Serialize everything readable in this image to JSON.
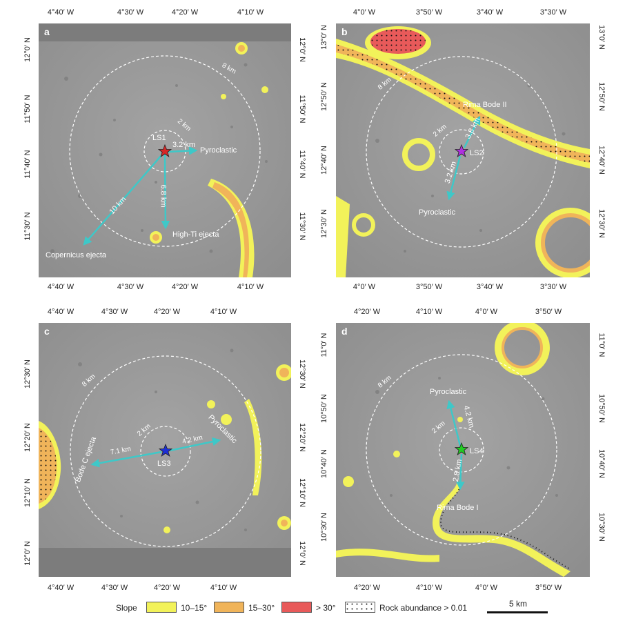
{
  "panels": [
    {
      "label": "a",
      "top_ticks": [
        "4°40′ W",
        "4°30′ W",
        "4°20′ W",
        "4°10′ W"
      ],
      "bottom_ticks": [
        "4°40′ W",
        "4°30′ W",
        "4°20′ W",
        "4°10′ W"
      ],
      "left_ticks": [
        "12°0′ N",
        "11°50′ N",
        "11°40′ N",
        "11°30′ N"
      ],
      "right_ticks": [
        "12°0′ N",
        "11°50′ N",
        "11°40′ N",
        "11°30′ N"
      ],
      "site": {
        "name": "LS1",
        "color": "#d62828"
      },
      "circle_labels": [
        "2 km",
        "8 km"
      ],
      "arrow_labels": [
        "3.2 km",
        "6.8 km",
        "10 km"
      ],
      "feature_labels": [
        "Pyroclastic",
        "High-Ti ejecta",
        "Copernicus ejecta"
      ]
    },
    {
      "label": "b",
      "top_ticks": [
        "4°0′ W",
        "3°50′ W",
        "3°40′ W",
        "3°30′ W"
      ],
      "bottom_ticks": [
        "4°0′ W",
        "3°50′ W",
        "3°40′ W",
        "3°30′ W"
      ],
      "left_ticks": [
        "13°0′ N",
        "12°50′ N",
        "12°40′ N",
        "12°30′ N"
      ],
      "right_ticks": [
        "13°0′ N",
        "12°50′ N",
        "12°40′ N",
        "12°30′ N"
      ],
      "site": {
        "name": "LS2",
        "color": "#b030e0"
      },
      "circle_labels": [
        "2 km",
        "8 km"
      ],
      "arrow_labels": [
        "3.8 km",
        "3.2 km"
      ],
      "feature_labels": [
        "Rima Bode II",
        "Pyroclastic"
      ]
    },
    {
      "label": "c",
      "top_ticks": [
        "4°40′ W",
        "4°30′ W",
        "4°20′ W",
        "4°10′ W"
      ],
      "bottom_ticks": [
        "4°40′ W",
        "4°30′ W",
        "4°20′ W",
        "4°10′ W"
      ],
      "left_ticks": [
        "12°30′ N",
        "12°20′ N",
        "12°10′ N",
        "12°0′ N"
      ],
      "right_ticks": [
        "12°30′ N",
        "12°20′ N",
        "12°10′ N",
        "12°0′ N"
      ],
      "site": {
        "name": "LS3",
        "color": "#1c2fd6"
      },
      "circle_labels": [
        "2 km",
        "8 km"
      ],
      "arrow_labels": [
        "7.1 km",
        "4.2 km"
      ],
      "feature_labels": [
        "Bode C ejecta",
        "Pyroclastic"
      ]
    },
    {
      "label": "d",
      "top_ticks": [
        "4°20′ W",
        "4°10′ W",
        "4°0′ W",
        "3°50′ W"
      ],
      "bottom_ticks": [
        "4°20′ W",
        "4°10′ W",
        "4°0′ W",
        "3°50′ W"
      ],
      "left_ticks": [
        "11°0′ N",
        "10°50′ N",
        "10°40′ N",
        "10°30′ N"
      ],
      "right_ticks": [
        "11°0′ N",
        "10°50′ N",
        "10°40′ N",
        "10°30′ N"
      ],
      "site": {
        "name": "LS4",
        "color": "#22cc22"
      },
      "circle_labels": [
        "2 km",
        "8 km"
      ],
      "arrow_labels": [
        "4.2 km",
        "2.8 km"
      ],
      "feature_labels": [
        "Pyroclastic",
        "Rima Bode I"
      ]
    }
  ],
  "legend": {
    "title": "Slope",
    "entries": [
      {
        "label": "10–15°",
        "color": "#f2f25a"
      },
      {
        "label": "15–30°",
        "color": "#f0b45a"
      },
      {
        "label": "> 30°",
        "color": "#e85a5a"
      }
    ],
    "rock_label": "Rock abundance > 0.01",
    "scale_label": "5 km"
  },
  "colors": {
    "terrain": "#9a9a9a",
    "arrow": "#3ec8c8",
    "circle": "#ffffff"
  }
}
